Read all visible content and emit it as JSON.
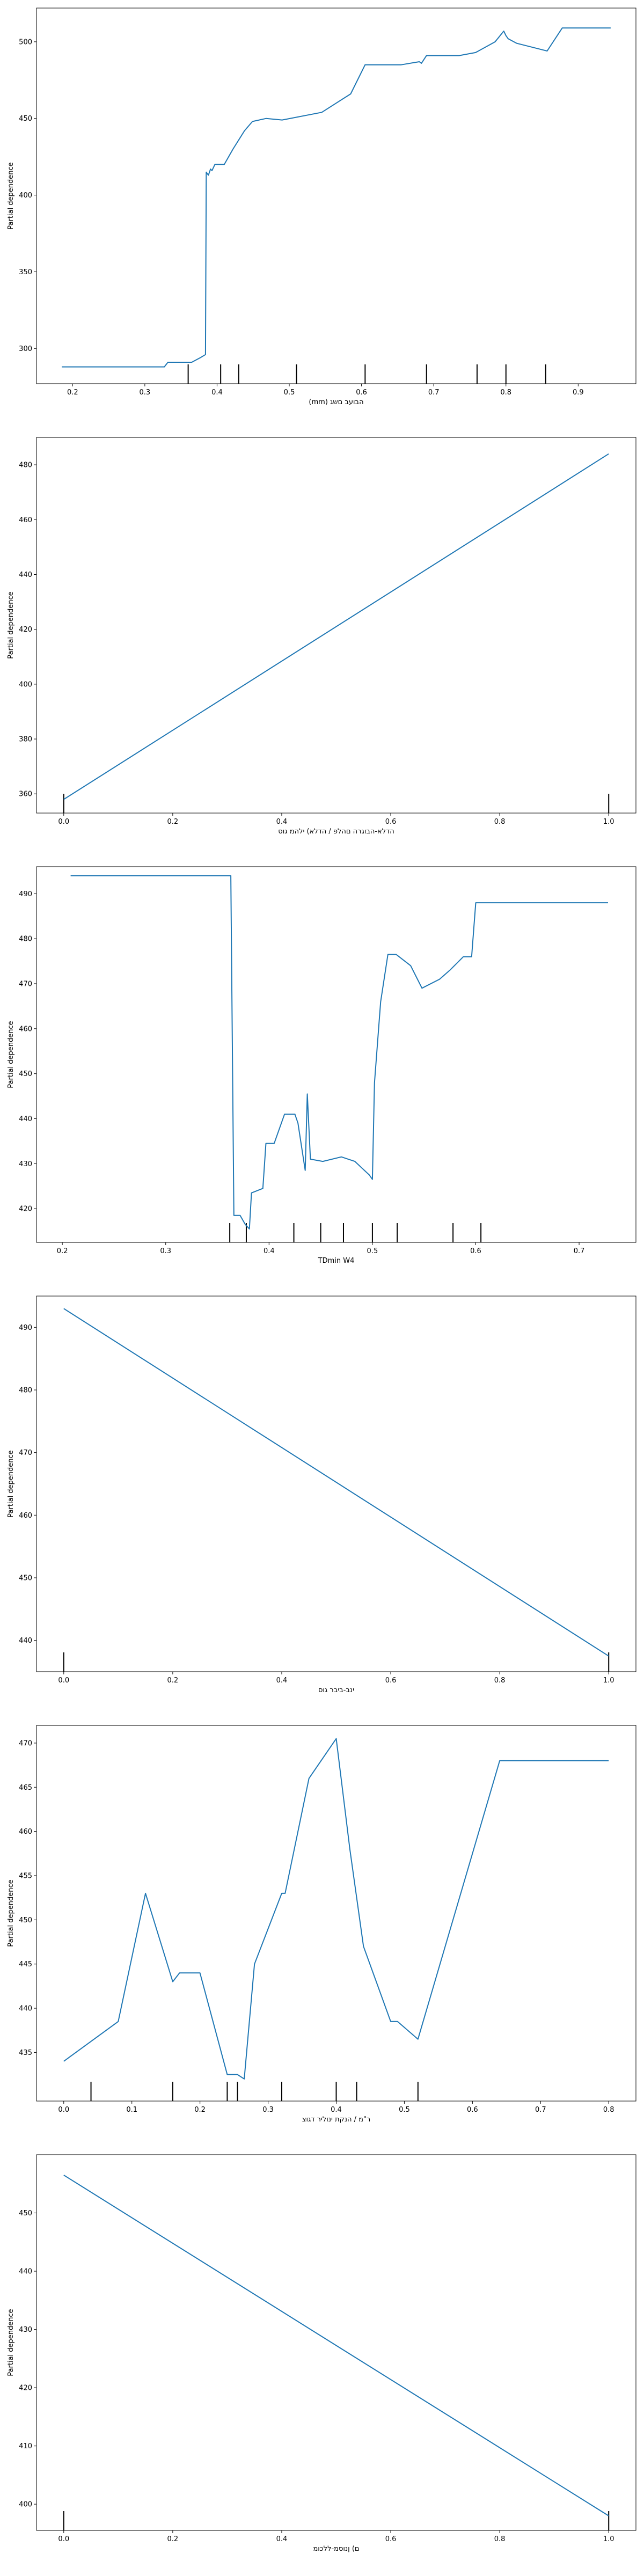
{
  "colors": {
    "line": "#1f77b4",
    "axis": "#000000",
    "rug": "#000000",
    "background": "#ffffff"
  },
  "chart_data": [
    {
      "type": "line",
      "xlabel": "(mm) הבועב םשג",
      "ylabel": "Partial dependence",
      "xlim": [
        0.15,
        0.98
      ],
      "ylim": [
        277,
        522
      ],
      "xticks": [
        {
          "v": 0.2,
          "label": "0.2"
        },
        {
          "v": 0.3,
          "label": "0.3"
        },
        {
          "v": 0.4,
          "label": "0.4"
        },
        {
          "v": 0.5,
          "label": "0.5"
        },
        {
          "v": 0.6,
          "label": "0.6"
        },
        {
          "v": 0.7,
          "label": "0.7"
        },
        {
          "v": 0.8,
          "label": "0.8"
        },
        {
          "v": 0.9,
          "label": "0.9"
        }
      ],
      "yticks": [
        {
          "v": 300,
          "label": "300"
        },
        {
          "v": 350,
          "label": "350"
        },
        {
          "v": 400,
          "label": "400"
        },
        {
          "v": 450,
          "label": "450"
        },
        {
          "v": 500,
          "label": "500"
        }
      ],
      "deciles": [
        0.36,
        0.405,
        0.43,
        0.51,
        0.605,
        0.69,
        0.76,
        0.8,
        0.855
      ],
      "x": [
        0.185,
        0.327,
        0.332,
        0.365,
        0.377,
        0.384,
        0.385,
        0.388,
        0.391,
        0.393,
        0.397,
        0.41,
        0.422,
        0.438,
        0.449,
        0.468,
        0.49,
        0.545,
        0.585,
        0.605,
        0.655,
        0.68,
        0.683,
        0.69,
        0.735,
        0.758,
        0.785,
        0.797,
        0.8,
        0.803,
        0.815,
        0.857,
        0.878,
        0.945
      ],
      "y": [
        288,
        288,
        291,
        291,
        294,
        296,
        415,
        413,
        417,
        416,
        420,
        420,
        430,
        442,
        448,
        450,
        449,
        454,
        466,
        485,
        485,
        487,
        486,
        491,
        491,
        493,
        500,
        507,
        504,
        502,
        499,
        494,
        509,
        509
      ]
    },
    {
      "type": "line",
      "xlabel": "הדלא-הבוגרה םהלפ / הדלא) ילהמ גוס",
      "ylabel": "Partial dependence",
      "xlim": [
        -0.05,
        1.05
      ],
      "ylim": [
        353,
        490
      ],
      "xticks": [
        {
          "v": 0,
          "label": "0.0"
        },
        {
          "v": 0.2,
          "label": "0.2"
        },
        {
          "v": 0.4,
          "label": "0.4"
        },
        {
          "v": 0.6,
          "label": "0.6"
        },
        {
          "v": 0.8,
          "label": "0.8"
        },
        {
          "v": 1.0,
          "label": "1.0"
        }
      ],
      "yticks": [
        {
          "v": 360,
          "label": "360"
        },
        {
          "v": 380,
          "label": "380"
        },
        {
          "v": 400,
          "label": "400"
        },
        {
          "v": 420,
          "label": "420"
        },
        {
          "v": 440,
          "label": "440"
        },
        {
          "v": 460,
          "label": "460"
        },
        {
          "v": 480,
          "label": "480"
        }
      ],
      "deciles": [
        0,
        1
      ],
      "x": [
        0,
        1
      ],
      "y": [
        358,
        484
      ]
    },
    {
      "type": "line",
      "xlabel": "TDmin W4",
      "ylabel": "Partial dependence",
      "xlim": [
        0.175,
        0.755
      ],
      "ylim": [
        412.5,
        496
      ],
      "xticks": [
        {
          "v": 0.2,
          "label": "0.2"
        },
        {
          "v": 0.3,
          "label": "0.3"
        },
        {
          "v": 0.4,
          "label": "0.4"
        },
        {
          "v": 0.5,
          "label": "0.5"
        },
        {
          "v": 0.6,
          "label": "0.6"
        },
        {
          "v": 0.7,
          "label": "0.7"
        }
      ],
      "yticks": [
        {
          "v": 420,
          "label": "420"
        },
        {
          "v": 430,
          "label": "430"
        },
        {
          "v": 440,
          "label": "440"
        },
        {
          "v": 450,
          "label": "450"
        },
        {
          "v": 460,
          "label": "460"
        },
        {
          "v": 470,
          "label": "470"
        },
        {
          "v": 480,
          "label": "480"
        },
        {
          "v": 490,
          "label": "490"
        }
      ],
      "deciles": [
        0.362,
        0.378,
        0.424,
        0.45,
        0.472,
        0.5,
        0.524,
        0.578,
        0.605
      ],
      "x": [
        0.208,
        0.363,
        0.366,
        0.372,
        0.377,
        0.381,
        0.383,
        0.394,
        0.397,
        0.405,
        0.415,
        0.425,
        0.428,
        0.435,
        0.437,
        0.44,
        0.452,
        0.47,
        0.483,
        0.497,
        0.5,
        0.502,
        0.508,
        0.515,
        0.523,
        0.537,
        0.548,
        0.565,
        0.575,
        0.588,
        0.596,
        0.6,
        0.604,
        0.728
      ],
      "y": [
        494,
        494,
        418.5,
        418.5,
        416.5,
        415.5,
        423.5,
        424.5,
        434.5,
        434.5,
        441,
        441,
        439,
        428.5,
        445.5,
        431,
        430.5,
        431.5,
        430.5,
        427.5,
        426.5,
        448,
        466,
        476.5,
        476.5,
        474,
        469,
        471,
        473,
        476,
        476,
        488,
        488,
        488
      ]
    },
    {
      "type": "line",
      "xlabel": "ינב-ביבר גוס",
      "ylabel": "Partial dependence",
      "xlim": [
        -0.05,
        1.05
      ],
      "ylim": [
        435,
        495
      ],
      "xticks": [
        {
          "v": 0,
          "label": "0.0"
        },
        {
          "v": 0.2,
          "label": "0.2"
        },
        {
          "v": 0.4,
          "label": "0.4"
        },
        {
          "v": 0.6,
          "label": "0.6"
        },
        {
          "v": 0.8,
          "label": "0.8"
        },
        {
          "v": 1.0,
          "label": "1.0"
        }
      ],
      "yticks": [
        {
          "v": 440,
          "label": "440"
        },
        {
          "v": 450,
          "label": "450"
        },
        {
          "v": 460,
          "label": "460"
        },
        {
          "v": 470,
          "label": "470"
        },
        {
          "v": 480,
          "label": "480"
        },
        {
          "v": 490,
          "label": "490"
        }
      ],
      "deciles": [
        0,
        1
      ],
      "x": [
        0,
        1
      ],
      "y": [
        493,
        437.5
      ]
    },
    {
      "type": "line",
      "xlabel": "ר\"מ / הנקת ינוליר דגוצ",
      "ylabel": "Partial dependence",
      "xlim": [
        -0.04,
        0.84
      ],
      "ylim": [
        429.5,
        472
      ],
      "xticks": [
        {
          "v": 0,
          "label": "0.0"
        },
        {
          "v": 0.1,
          "label": "0.1"
        },
        {
          "v": 0.2,
          "label": "0.2"
        },
        {
          "v": 0.3,
          "label": "0.3"
        },
        {
          "v": 0.4,
          "label": "0.4"
        },
        {
          "v": 0.5,
          "label": "0.5"
        },
        {
          "v": 0.6,
          "label": "0.6"
        },
        {
          "v": 0.7,
          "label": "0.7"
        },
        {
          "v": 0.8,
          "label": "0.8"
        }
      ],
      "yticks": [
        {
          "v": 435,
          "label": "435"
        },
        {
          "v": 440,
          "label": "440"
        },
        {
          "v": 445,
          "label": "445"
        },
        {
          "v": 450,
          "label": "450"
        },
        {
          "v": 455,
          "label": "455"
        },
        {
          "v": 460,
          "label": "460"
        },
        {
          "v": 465,
          "label": "465"
        },
        {
          "v": 470,
          "label": "470"
        }
      ],
      "deciles": [
        0.04,
        0.16,
        0.24,
        0.255,
        0.32,
        0.4,
        0.43,
        0.52
      ],
      "x": [
        0,
        0.08,
        0.12,
        0.16,
        0.17,
        0.2,
        0.24,
        0.255,
        0.265,
        0.28,
        0.32,
        0.325,
        0.36,
        0.4,
        0.42,
        0.44,
        0.48,
        0.49,
        0.52,
        0.64,
        0.8
      ],
      "y": [
        434,
        438.5,
        453,
        443,
        444,
        444,
        432.5,
        432.5,
        432,
        445,
        453,
        453,
        466,
        470.5,
        458,
        447,
        438.5,
        438.5,
        436.5,
        468,
        468
      ]
    },
    {
      "type": "line",
      "xlabel": "ם) ןנוסמ-ללכומ ",
      "ylabel": "Partial dependence",
      "xlim": [
        -0.05,
        1.05
      ],
      "ylim": [
        395.5,
        460
      ],
      "xticks": [
        {
          "v": 0,
          "label": "0.0"
        },
        {
          "v": 0.2,
          "label": "0.2"
        },
        {
          "v": 0.4,
          "label": "0.4"
        },
        {
          "v": 0.6,
          "label": "0.6"
        },
        {
          "v": 0.8,
          "label": "0.8"
        },
        {
          "v": 1.0,
          "label": "1.0"
        }
      ],
      "yticks": [
        {
          "v": 400,
          "label": "400"
        },
        {
          "v": 410,
          "label": "410"
        },
        {
          "v": 420,
          "label": "420"
        },
        {
          "v": 430,
          "label": "430"
        },
        {
          "v": 440,
          "label": "440"
        },
        {
          "v": 450,
          "label": "450"
        }
      ],
      "deciles": [
        0,
        1
      ],
      "x": [
        0,
        1
      ],
      "y": [
        456.5,
        398
      ]
    }
  ]
}
